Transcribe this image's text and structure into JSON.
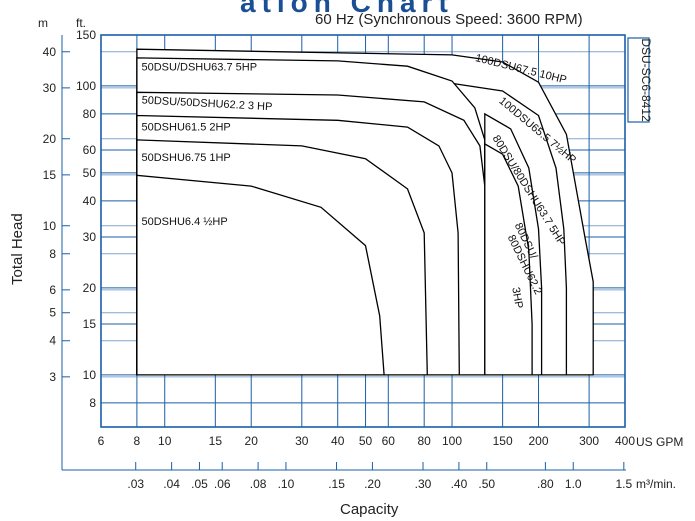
{
  "chart_data": {
    "type": "area",
    "title_partial": "ation Chart",
    "subtitle": "60 Hz (Synchronous Speed: 3600 RPM)",
    "model_code": "DSU-SC6-8412",
    "ylabel": "Total Head",
    "xlabel": "Capacity",
    "x_unit_gpm": "US GPM",
    "x_unit_m3": "m³/min.",
    "y_unit_m": "m",
    "y_unit_ft": "ft.",
    "x_scale": "log",
    "y_scale": "log",
    "xlim_gpm": [
      6,
      400
    ],
    "ylim_ft": [
      6.6,
      150
    ],
    "gpm_ticks": [
      6,
      8,
      10,
      15,
      20,
      30,
      40,
      50,
      60,
      80,
      100,
      150,
      200,
      300,
      400
    ],
    "gpm_tick_labels": [
      "6",
      "8",
      "10",
      "15",
      "20",
      "30",
      "40",
      "50",
      "60",
      "80",
      "100",
      "150",
      "200",
      "300",
      "400"
    ],
    "m3_ticks": [
      0.03,
      0.04,
      0.05,
      0.06,
      0.08,
      0.1,
      0.15,
      0.2,
      0.3,
      0.4,
      0.5,
      0.8,
      1.0,
      1.5
    ],
    "m3_tick_labels": [
      ".03",
      ".04",
      ".05",
      ".06",
      ".08",
      ".10",
      ".15",
      ".20",
      ".30",
      ".40",
      ".50",
      ".80",
      "1.0",
      "1.5"
    ],
    "ft_ticks": [
      8,
      10,
      15,
      20,
      30,
      40,
      50,
      60,
      80,
      100,
      150
    ],
    "ft_tick_labels": [
      "8",
      "10",
      "15",
      "20",
      "30",
      "40",
      "50",
      "60",
      "80",
      "100",
      "150"
    ],
    "m_ticks": [
      3,
      4,
      5,
      6,
      8,
      10,
      15,
      20,
      30,
      40
    ],
    "m_tick_labels": [
      "3",
      "4",
      "5",
      "6",
      "8",
      "10",
      "15",
      "20",
      "30",
      "40"
    ],
    "grid": true,
    "series": [
      {
        "name": "100DSU67.5 10HP",
        "points": [
          [
            8.0,
            134
          ],
          [
            100,
            128
          ],
          [
            150,
            121
          ],
          [
            200,
            103
          ],
          [
            250,
            68
          ],
          [
            290,
            30
          ],
          [
            310,
            21
          ]
        ]
      },
      {
        "name": "100DSU65.5 7½HP",
        "points": [
          [
            100,
            102
          ],
          [
            150,
            96
          ],
          [
            200,
            79
          ],
          [
            230,
            52
          ],
          [
            245,
            32
          ],
          [
            250,
            20
          ]
        ]
      },
      {
        "name": "50DSU/DSHU63.7 5HP",
        "points": [
          [
            8.0,
            125
          ],
          [
            40,
            122
          ],
          [
            70,
            117
          ],
          [
            100,
            104
          ],
          [
            120,
            84
          ],
          [
            130,
            65
          ]
        ]
      },
      {
        "name": "80DSU/80DSHU63.7 5HP",
        "points": [
          [
            130,
            80
          ],
          [
            160,
            71
          ],
          [
            185,
            52
          ],
          [
            200,
            32
          ],
          [
            205,
            20
          ]
        ]
      },
      {
        "name": "50DSU/50DSHU62.2 3HP",
        "points": [
          [
            8.0,
            95
          ],
          [
            40,
            93
          ],
          [
            80,
            88
          ],
          [
            110,
            76
          ],
          [
            125,
            62
          ],
          [
            130,
            45
          ]
        ]
      },
      {
        "name": "80DSU/80DSHU62.2 3HP",
        "points": [
          [
            130,
            63
          ],
          [
            150,
            58
          ],
          [
            170,
            45
          ],
          [
            185,
            27
          ],
          [
            190,
            15
          ]
        ]
      },
      {
        "name": "50DSHU61.5 2HP",
        "points": [
          [
            8.0,
            79
          ],
          [
            40,
            76
          ],
          [
            70,
            72
          ],
          [
            90,
            62
          ],
          [
            100,
            50
          ],
          [
            105,
            31
          ],
          [
            106,
            10
          ]
        ]
      },
      {
        "name": "50DSHU6.75 1HP",
        "points": [
          [
            8.0,
            65
          ],
          [
            30,
            62
          ],
          [
            50,
            56
          ],
          [
            70,
            44
          ],
          [
            80,
            31
          ],
          [
            82,
            10
          ]
        ]
      },
      {
        "name": "50DSHU6.4 ½HP",
        "points": [
          [
            8.0,
            49
          ],
          [
            20,
            45
          ],
          [
            35,
            38
          ],
          [
            50,
            28
          ],
          [
            56,
            16
          ],
          [
            58,
            10
          ]
        ]
      }
    ],
    "labels": [
      {
        "text": "50DSU/DSHU63.7  5HP",
        "gpm": 8.3,
        "ft": 113,
        "rotate": 0
      },
      {
        "text": "50DSU/50DSHU62.2  3 HP",
        "gpm": 8.3,
        "ft": 87,
        "rotate": 3
      },
      {
        "text": "50DSHU61.5  2HP",
        "gpm": 8.3,
        "ft": 70,
        "rotate": 0
      },
      {
        "text": "50DSHU6.75  1HP",
        "gpm": 8.3,
        "ft": 55,
        "rotate": 0
      },
      {
        "text": "50DSHU6.4  ½HP",
        "gpm": 8.3,
        "ft": 33,
        "rotate": 0
      },
      {
        "text": "100DSU67.5  10HP",
        "gpm": 120,
        "ft": 122,
        "rotate": 14
      },
      {
        "text": "100DSU65.5  7½HP",
        "gpm": 145,
        "ft": 88,
        "rotate": 40
      },
      {
        "text": "80DSU/80DSHU63.7  5HP",
        "gpm": 138,
        "ft": 66,
        "rotate": 58
      },
      {
        "text": "80DSU/",
        "gpm": 165,
        "ft": 33,
        "rotate": 64
      },
      {
        "text": "80DSHU62.2",
        "gpm": 156,
        "ft": 30,
        "rotate": 64
      },
      {
        "text": "3HP",
        "gpm": 162,
        "ft": 20,
        "rotate": 80
      }
    ]
  }
}
